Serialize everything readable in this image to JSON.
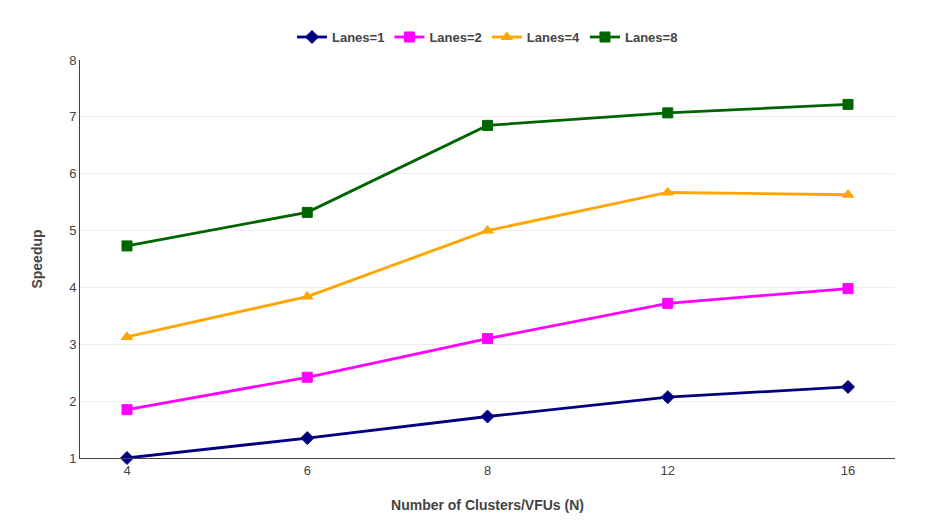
{
  "chart_data": {
    "type": "line",
    "xlabel": "Number of Clusters/VFUs (N)",
    "ylabel": "Speedup",
    "categories": [
      "4",
      "6",
      "8",
      "12",
      "16"
    ],
    "series": [
      {
        "name": "Lanes=1",
        "color": "#000080",
        "marker": "diamond",
        "values": [
          1.0,
          1.35,
          1.73,
          2.07,
          2.25
        ]
      },
      {
        "name": "Lanes=2",
        "color": "#FF00FF",
        "marker": "square",
        "values": [
          1.85,
          2.42,
          3.1,
          3.72,
          3.98
        ]
      },
      {
        "name": "Lanes=4",
        "color": "#FFA500",
        "marker": "triangle",
        "values": [
          3.13,
          3.84,
          5.0,
          5.67,
          5.63
        ]
      },
      {
        "name": "Lanes=8",
        "color": "#006400",
        "marker": "square",
        "values": [
          4.73,
          5.32,
          6.85,
          7.07,
          7.22
        ]
      }
    ],
    "ylim": [
      1,
      8
    ],
    "yticks": [
      1,
      2,
      3,
      4,
      5,
      6,
      7,
      8
    ],
    "grid": true,
    "legend": "top"
  }
}
